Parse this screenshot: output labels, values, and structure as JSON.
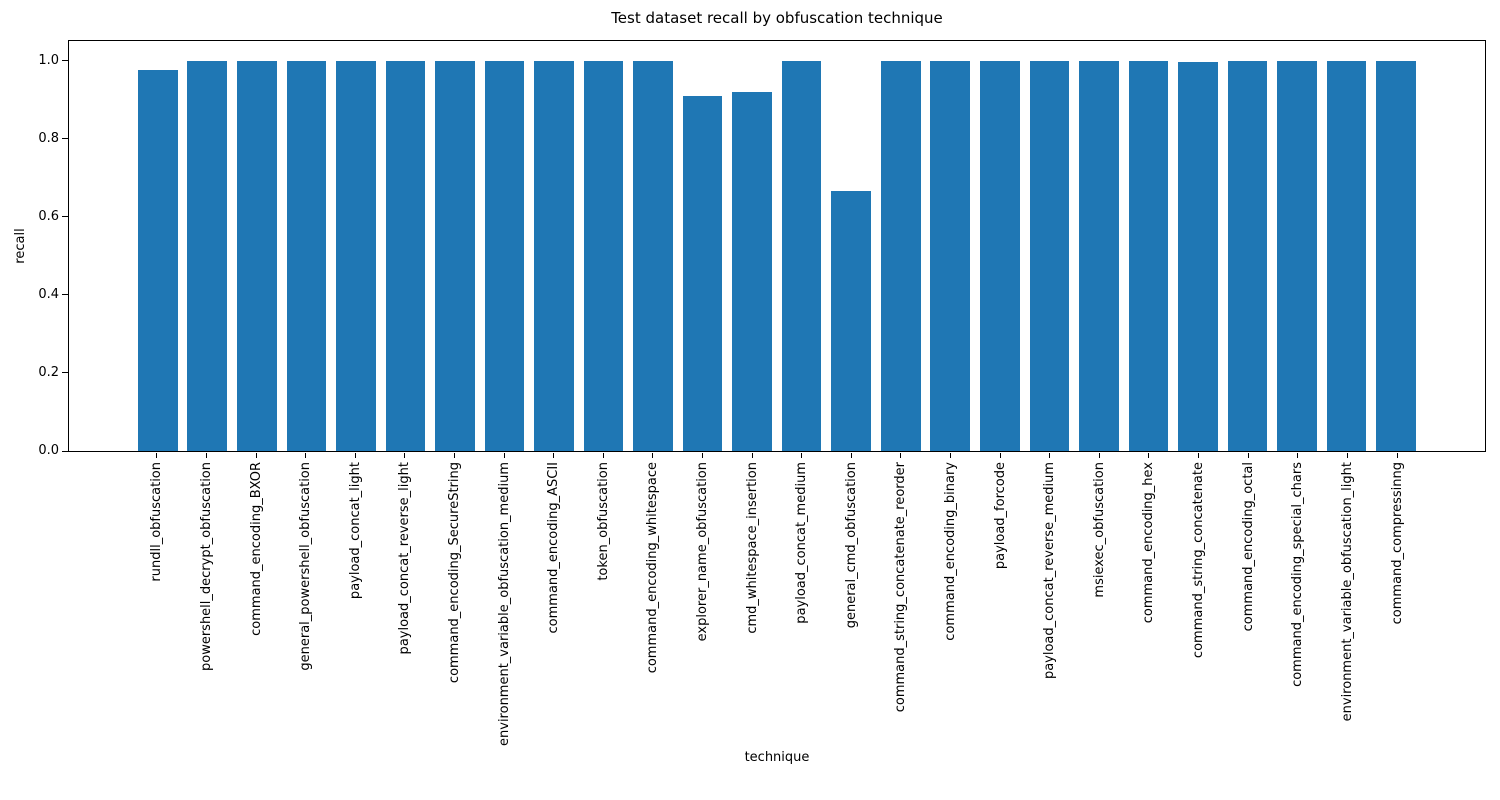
{
  "chart_data": {
    "type": "bar",
    "title": "Test dataset recall by obfuscation technique",
    "xlabel": "technique",
    "ylabel": "recall",
    "bar_color": "#1f77b4",
    "ylim": [
      0,
      1.05
    ],
    "yticks": [
      0.0,
      0.2,
      0.4,
      0.6,
      0.8,
      1.0
    ],
    "grid": false,
    "legend": "none",
    "categories": [
      "rundll_obfuscation",
      "powershell_decrypt_obfuscation",
      "command_encoding_BXOR",
      "general_powershell_obfuscation",
      "payload_concat_light",
      "payload_concat_reverse_light",
      "command_encoding_SecureString",
      "environment_variable_obfuscation_medium",
      "command_encoding_ASCII",
      "token_obfuscation",
      "command_encoding_whitespace",
      "explorer_name_obfuscation",
      "cmd_whitespace_insertion",
      "payload_concat_medium",
      "general_cmd_obfuscation",
      "command_string_concatenate_reorder",
      "command_encoding_binary",
      "payload_forcode",
      "payload_concat_reverse_medium",
      "msiexec_obfuscation",
      "command_encoding_hex",
      "command_string_concatenate",
      "command_encoding_octal",
      "command_encoding_special_chars",
      "environment_variable_obfuscation_light",
      "command_compressinng"
    ],
    "values": [
      0.975,
      1.0,
      1.0,
      1.0,
      1.0,
      1.0,
      1.0,
      1.0,
      1.0,
      1.0,
      1.0,
      0.91,
      0.92,
      1.0,
      0.667,
      1.0,
      1.0,
      1.0,
      1.0,
      1.0,
      1.0,
      0.995,
      1.0,
      1.0,
      1.0,
      1.0
    ]
  }
}
